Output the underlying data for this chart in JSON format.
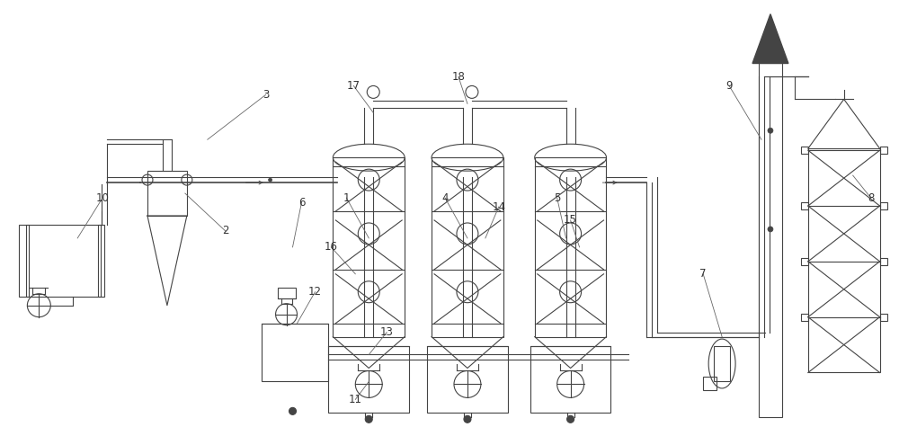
{
  "bg_color": "#ffffff",
  "lc": "#444444",
  "lw": 1.2,
  "tlw": 0.8
}
